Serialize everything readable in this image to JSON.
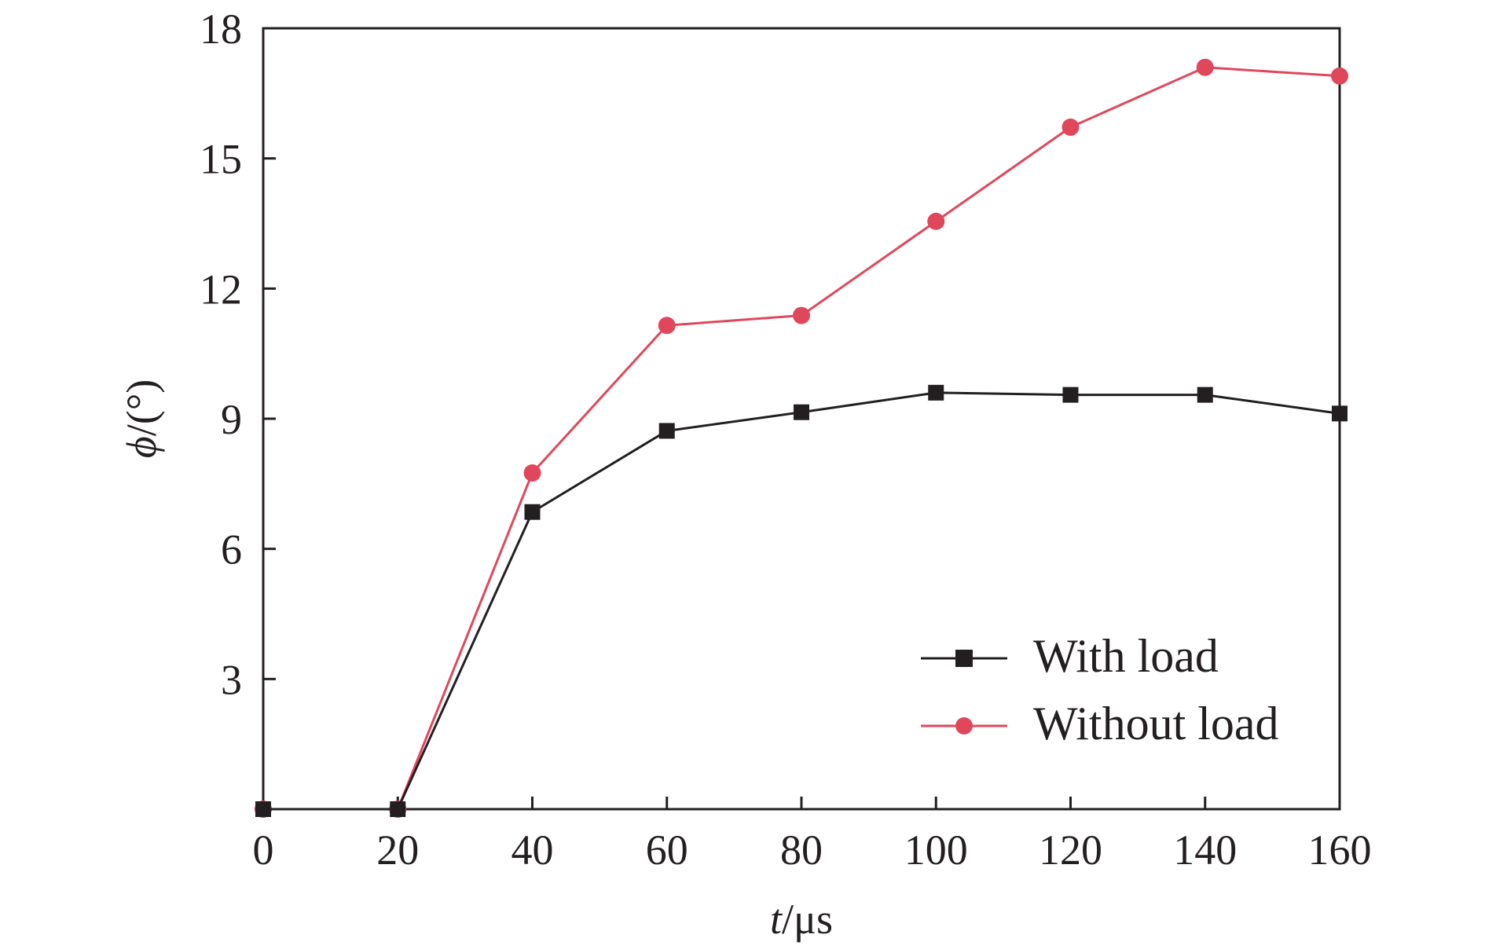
{
  "chart_data": {
    "type": "line",
    "xlabel": {
      "var": "t",
      "unit": "/μs"
    },
    "ylabel": {
      "var": "ϕ",
      "unit": "/(°)"
    },
    "xlim": [
      0,
      160
    ],
    "ylim": [
      0,
      18
    ],
    "x_ticks": [
      0,
      20,
      40,
      60,
      80,
      100,
      120,
      140,
      160
    ],
    "y_ticks": [
      3,
      6,
      9,
      12,
      15,
      18
    ],
    "x_tick_labels": [
      "0",
      "20",
      "40",
      "60",
      "80",
      "100",
      "120",
      "140",
      "160"
    ],
    "y_tick_labels": [
      "3",
      "6",
      "9",
      "12",
      "15",
      "18"
    ],
    "x": [
      0,
      20,
      40,
      60,
      80,
      100,
      120,
      140,
      160
    ],
    "series": [
      {
        "name": "With load",
        "color": "#231f20",
        "marker": "square",
        "values": [
          0,
          0,
          6.85,
          8.72,
          9.15,
          9.6,
          9.55,
          9.55,
          9.12
        ]
      },
      {
        "name": "Without load",
        "color": "#e0475b",
        "marker": "circle",
        "values": [
          0,
          0,
          7.75,
          11.15,
          11.38,
          13.55,
          15.72,
          17.1,
          16.9
        ]
      }
    ],
    "grid": false,
    "legend_position": "bottom-right"
  }
}
